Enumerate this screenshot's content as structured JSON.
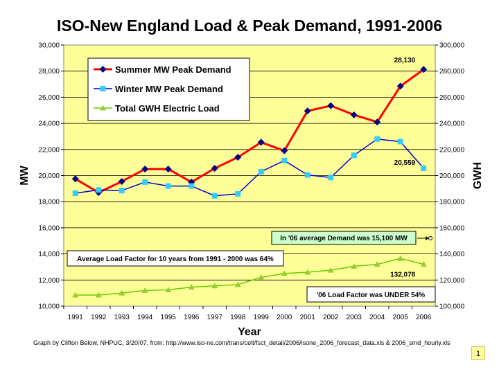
{
  "page": {
    "credit": "Graph by Clifton Below, NHPUC, 3/20/07, from: http://www.iso-ne.com/trans/celt/fsct_detail/2006/isone_2006_forecast_data.xls & 2006_smd_hourly.xls",
    "page_number": "1"
  },
  "chart_data": {
    "type": "line",
    "title": "ISO-New England Load & Peak Demand, 1991-2006",
    "xlabel": "Year",
    "ylabel": "MW",
    "y2label": "GWH",
    "x": [
      "1991",
      "1992",
      "1993",
      "1994",
      "1995",
      "1996",
      "1997",
      "1998",
      "1999",
      "2000",
      "2001",
      "2002",
      "2003",
      "2004",
      "2005",
      "2006"
    ],
    "ylim": [
      10000,
      30000
    ],
    "y2lim": [
      100000,
      300000
    ],
    "yticks": [
      "10,000",
      "12,000",
      "14,000",
      "16,000",
      "18,000",
      "20,000",
      "22,000",
      "24,000",
      "26,000",
      "28,000",
      "30,000"
    ],
    "y2ticks": [
      "100,000",
      "120,000",
      "140,000",
      "160,000",
      "180,000",
      "200,000",
      "220,000",
      "240,000",
      "260,000",
      "280,000",
      "300,000"
    ],
    "grid": true,
    "plot_background": "#ffff99",
    "legend_position": "top-left",
    "series": [
      {
        "name": "Summer MW Peak Demand",
        "axis": "left",
        "color": "#ff0000",
        "marker_color": "#000080",
        "marker": "diamond",
        "values": [
          19750,
          18700,
          19550,
          20500,
          20500,
          19500,
          20550,
          21400,
          22550,
          21900,
          24950,
          25350,
          24650,
          24100,
          26850,
          28130
        ]
      },
      {
        "name": "Winter MW Peak Demand",
        "axis": "left",
        "color": "#0000cc",
        "marker_color": "#33ccff",
        "marker": "square",
        "values": [
          18650,
          18900,
          18850,
          19500,
          19200,
          19200,
          18450,
          18600,
          20300,
          21150,
          20050,
          19850,
          21550,
          22800,
          22600,
          20559
        ]
      },
      {
        "name": "Total GWH Electric Load",
        "axis": "right",
        "color": "#66cc00",
        "marker_color": "#99cc33",
        "marker": "triangle",
        "values": [
          108500,
          108500,
          110000,
          112000,
          112500,
          114500,
          115500,
          116500,
          122000,
          125000,
          126000,
          127500,
          130500,
          132000,
          136500,
          132078
        ]
      }
    ],
    "data_labels": [
      {
        "series": "Summer MW Peak Demand",
        "x": "2006",
        "text": "28,130"
      },
      {
        "series": "Winter MW Peak Demand",
        "x": "2006",
        "text": "20,559"
      },
      {
        "series": "Total GWH Electric Load",
        "x": "2006",
        "text": "132,078"
      }
    ],
    "annotations": [
      "In '06 average Demand was 15,100 MW",
      "Average Load Factor for 10 years from 1991 - 2000 was 64%",
      "'06 Load Factor was UNDER 54%"
    ]
  }
}
